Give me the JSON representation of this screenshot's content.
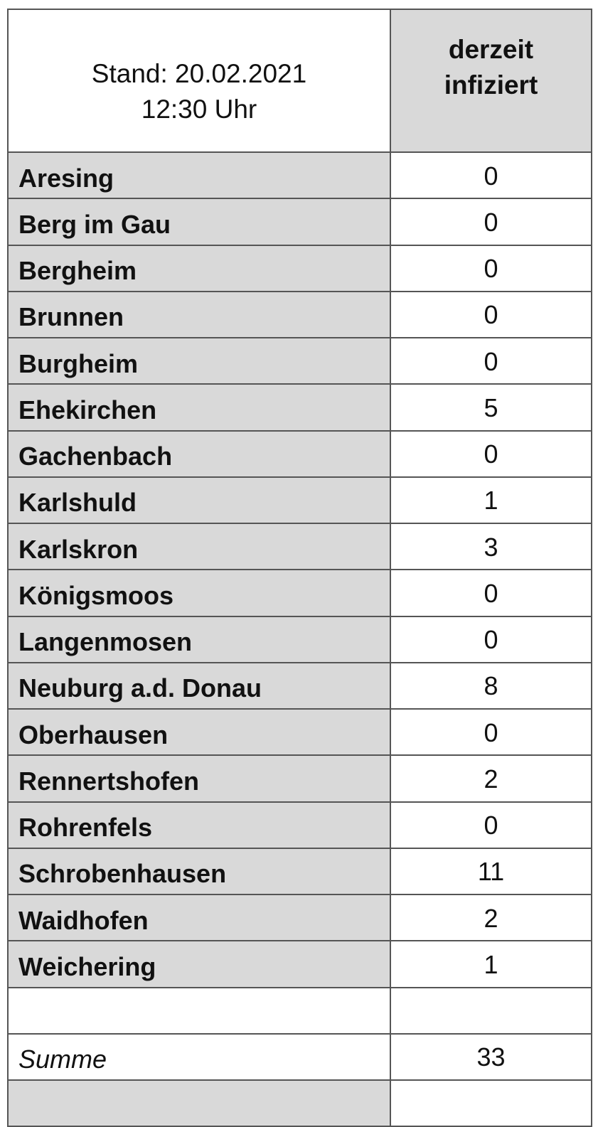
{
  "header": {
    "stand": [
      "Stand: 20.02.2021",
      "12:30 Uhr"
    ],
    "column": [
      "derzeit",
      "infiziert"
    ]
  },
  "rows": [
    {
      "name": "Aresing",
      "value": 0
    },
    {
      "name": "Berg im Gau",
      "value": 0
    },
    {
      "name": "Bergheim",
      "value": 0
    },
    {
      "name": "Brunnen",
      "value": 0
    },
    {
      "name": "Burgheim",
      "value": 0
    },
    {
      "name": "Ehekirchen",
      "value": 5
    },
    {
      "name": "Gachenbach",
      "value": 0
    },
    {
      "name": "Karlshuld",
      "value": 1
    },
    {
      "name": "Karlskron",
      "value": 3
    },
    {
      "name": "Königsmoos",
      "value": 0
    },
    {
      "name": "Langenmosen",
      "value": 0
    },
    {
      "name": "Neuburg a.d. Donau",
      "value": 8
    },
    {
      "name": "Oberhausen",
      "value": 0
    },
    {
      "name": "Rennertshofen",
      "value": 2
    },
    {
      "name": "Rohrenfels",
      "value": 0
    },
    {
      "name": "Schrobenhausen",
      "value": 11
    },
    {
      "name": "Waidhofen",
      "value": 2
    },
    {
      "name": "Weichering",
      "value": 1
    }
  ],
  "total": {
    "label": "Summe",
    "value": 33
  }
}
